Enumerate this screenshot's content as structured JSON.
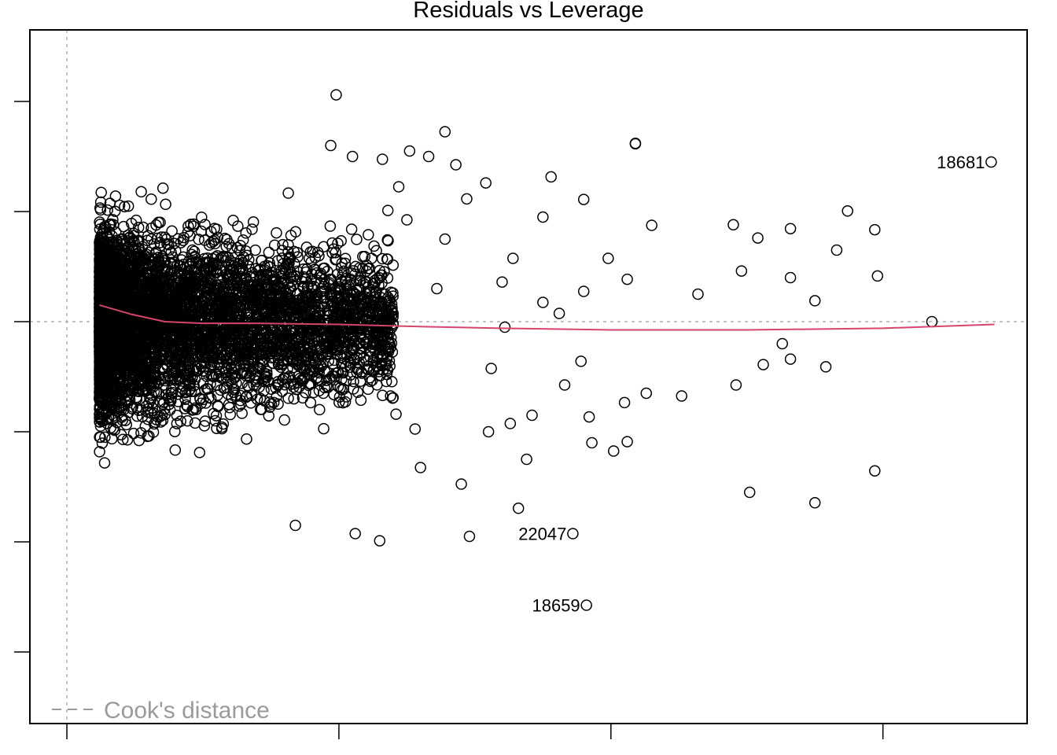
{
  "chart_data": {
    "type": "scatter",
    "title": "Residuals vs Leverage",
    "xlabel": "",
    "ylabel": "",
    "xlim": [
      -0.000136,
      0.00353
    ],
    "ylim": [
      -7.3,
      5.3
    ],
    "x_ticks": [
      0,
      0.001,
      0.002,
      0.003
    ],
    "y_ticks": [
      -6,
      -4,
      -2,
      0,
      2,
      4
    ],
    "reference_lines": {
      "horizontal_y": 0,
      "vertical_x": 0
    },
    "legend": {
      "position": "bottom-left",
      "label": "Cook's distance",
      "line_style": "dashed",
      "color": "#9a9a9a"
    },
    "grid": false,
    "colors": {
      "points": "#000000",
      "smoother": "#d6456b",
      "reference": "#b0b0b0"
    },
    "smoother": {
      "x": [
        0.00012,
        0.00024,
        0.00036,
        0.0005,
        0.0007,
        0.001,
        0.0013,
        0.0016,
        0.002,
        0.0025,
        0.003,
        0.00341
      ],
      "y": [
        0.3,
        0.13,
        0.0,
        -0.03,
        -0.03,
        -0.05,
        -0.09,
        -0.12,
        -0.15,
        -0.15,
        -0.12,
        -0.05
      ]
    },
    "labeled_points": [
      {
        "id": "18681",
        "x": 0.003398,
        "y": 2.9
      },
      {
        "id": "22047",
        "x": 0.00186,
        "y": -3.85
      },
      {
        "id": "18659",
        "x": 0.00191,
        "y": -5.15
      }
    ],
    "outlying_points": [
      {
        "x": 0.00099,
        "y": 4.12
      },
      {
        "x": 0.00139,
        "y": 3.45
      },
      {
        "x": 0.00209,
        "y": 3.24
      },
      {
        "x": 0.00209,
        "y": 3.23
      },
      {
        "x": 0.00097,
        "y": 3.2
      },
      {
        "x": 0.00178,
        "y": 2.63
      },
      {
        "x": 0.0019,
        "y": 2.22
      },
      {
        "x": 0.00287,
        "y": 2.01
      },
      {
        "x": 0.00215,
        "y": 1.75
      },
      {
        "x": 0.00297,
        "y": 1.67
      },
      {
        "x": 0.00283,
        "y": 1.3
      },
      {
        "x": 0.00254,
        "y": 1.52
      },
      {
        "x": 0.00266,
        "y": 1.69
      },
      {
        "x": 0.00245,
        "y": 1.76
      },
      {
        "x": 0.00206,
        "y": 0.77
      },
      {
        "x": 0.00232,
        "y": 0.5
      },
      {
        "x": 0.00248,
        "y": 0.92
      },
      {
        "x": 0.00266,
        "y": 0.8
      },
      {
        "x": 0.00275,
        "y": 0.38
      },
      {
        "x": 0.00298,
        "y": 0.83
      },
      {
        "x": 0.00318,
        "y": 0.0
      },
      {
        "x": 0.00263,
        "y": -0.4
      },
      {
        "x": 0.00256,
        "y": -0.78
      },
      {
        "x": 0.00266,
        "y": -0.68
      },
      {
        "x": 0.00279,
        "y": -0.82
      },
      {
        "x": 0.00213,
        "y": -1.3
      },
      {
        "x": 0.00226,
        "y": -1.35
      },
      {
        "x": 0.00192,
        "y": -1.73
      },
      {
        "x": 0.00205,
        "y": -1.47
      },
      {
        "x": 0.00246,
        "y": -1.15
      },
      {
        "x": 0.00297,
        "y": -2.71
      },
      {
        "x": 0.00251,
        "y": -3.1
      },
      {
        "x": 0.00275,
        "y": -3.29
      },
      {
        "x": 0.00166,
        "y": -3.39
      },
      {
        "x": 0.00171,
        "y": -1.7
      },
      {
        "x": 0.00193,
        "y": -2.2
      },
      {
        "x": 0.00201,
        "y": -2.35
      },
      {
        "x": 0.00206,
        "y": -2.18
      },
      {
        "x": 0.00189,
        "y": -0.72
      },
      {
        "x": 0.00175,
        "y": 1.9
      },
      {
        "x": 0.00148,
        "y": -3.9
      },
      {
        "x": 0.00106,
        "y": -3.85
      },
      {
        "x": 0.00115,
        "y": -3.98
      },
      {
        "x": 0.00084,
        "y": -3.7
      },
      {
        "x": 0.00164,
        "y": 1.15
      },
      {
        "x": 0.0016,
        "y": 0.72
      },
      {
        "x": 0.00175,
        "y": 0.35
      },
      {
        "x": 0.00181,
        "y": 0.15
      },
      {
        "x": 0.0019,
        "y": 0.55
      },
      {
        "x": 0.00154,
        "y": 2.52
      },
      {
        "x": 0.00143,
        "y": 2.85
      },
      {
        "x": 0.00147,
        "y": 2.23
      },
      {
        "x": 0.00133,
        "y": 3.0
      },
      {
        "x": 0.00122,
        "y": 2.45
      },
      {
        "x": 0.00126,
        "y": 3.1
      },
      {
        "x": 0.00155,
        "y": -2.0
      },
      {
        "x": 0.00163,
        "y": -1.85
      },
      {
        "x": 0.00169,
        "y": -2.5
      },
      {
        "x": 0.00145,
        "y": -2.95
      },
      {
        "x": 0.0013,
        "y": -2.65
      },
      {
        "x": 0.00121,
        "y": -1.68
      },
      {
        "x": 0.00119,
        "y": -1.35
      },
      {
        "x": 0.00128,
        "y": -1.95
      },
      {
        "x": 0.00125,
        "y": 1.85
      },
      {
        "x": 0.00118,
        "y": 2.02
      },
      {
        "x": 0.00112,
        "y": 1.15
      },
      {
        "x": 0.00139,
        "y": 1.5
      },
      {
        "x": 0.00136,
        "y": 0.6
      },
      {
        "x": 0.00156,
        "y": -0.85
      },
      {
        "x": 0.00116,
        "y": 2.95
      },
      {
        "x": 0.00105,
        "y": 3.0
      },
      {
        "x": 0.00199,
        "y": 1.15
      },
      {
        "x": 0.00161,
        "y": -0.1
      },
      {
        "x": 0.00183,
        "y": -1.15
      }
    ],
    "dense_cloud_note": "several thousand additional points are concentrated at leverage 0.00012-0.0011 with residuals between about -4 and 3.5"
  }
}
